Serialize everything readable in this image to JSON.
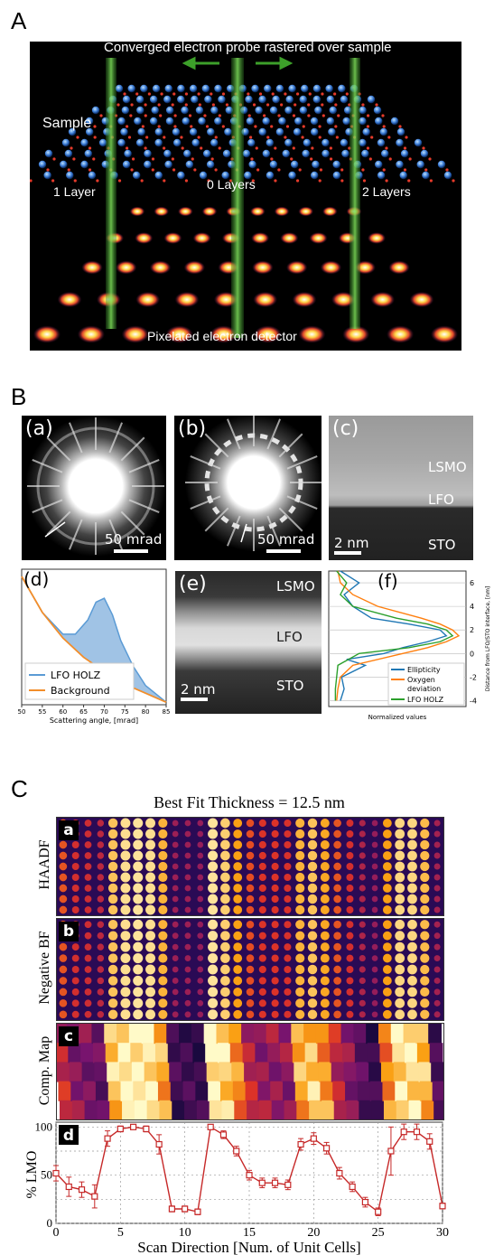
{
  "panel_letters": {
    "a": "A",
    "b": "B",
    "c": "C"
  },
  "panel_a": {
    "top_text": "Converged electron probe rastered over sample",
    "sample": "Sample",
    "layer1": "1 Layer",
    "layer0": "0 Layers",
    "layer2": "2 Layers",
    "detector": "Pixelated electron detector"
  },
  "panel_b": {
    "a": {
      "tag": "(a)",
      "scale": "50 mrad"
    },
    "b": {
      "tag": "(b)",
      "scale": "50 mrad"
    },
    "c": {
      "tag": "(c)",
      "scale": "2 nm",
      "lsmo": "LSMO",
      "lfo": "LFO",
      "sto": "STO"
    },
    "e": {
      "tag": "(e)",
      "scale": "2 nm",
      "lsmo": "LSMO",
      "lfo": "LFO",
      "sto": "STO"
    },
    "f_tag": "(f)",
    "d_tag": "(d)"
  },
  "colors": {
    "holz": "#5b9bd5",
    "background": "#f28e2b",
    "ellipticity": "#1f77b4",
    "oxygen": "#ff7f0e",
    "lfo_holz": "#2ca02c",
    "lmo_line": "#c62828"
  },
  "chart_data": [
    {
      "type": "area",
      "panel": "(d)",
      "xlabel": "Scattering angle, [mrad]",
      "ylabel": "",
      "xlim": [
        50,
        85
      ],
      "xticks": [
        "50",
        "55",
        "60",
        "65",
        "70",
        "75",
        "80",
        "85"
      ],
      "legend_placement": "bottom-left",
      "series": [
        {
          "name": "LFO HOLZ",
          "x": [
            50,
            55,
            60,
            63,
            66,
            68,
            70,
            72,
            74,
            77,
            80,
            85
          ],
          "y": [
            1.0,
            0.72,
            0.55,
            0.55,
            0.66,
            0.8,
            0.83,
            0.7,
            0.5,
            0.3,
            0.15,
            0.02
          ]
        },
        {
          "name": "Background",
          "x": [
            50,
            55,
            60,
            65,
            70,
            75,
            80,
            85
          ],
          "y": [
            1.0,
            0.72,
            0.52,
            0.37,
            0.26,
            0.16,
            0.09,
            0.02
          ]
        }
      ]
    },
    {
      "type": "line",
      "panel": "(f)",
      "xlabel": "Normalized values",
      "ylabel": "Distance from LFO/STO interface, [nm]",
      "ylim": [
        -4.5,
        7
      ],
      "yticks": [
        "-4",
        "-2",
        "0",
        "2",
        "4",
        "6"
      ],
      "legend_placement": "bottom-right",
      "series": [
        {
          "name": "Ellipticity",
          "y": [
            -4,
            -3,
            -2,
            -1,
            -0.5,
            0,
            0.5,
            1,
            1.5,
            2,
            2.5,
            3,
            4,
            5,
            6,
            7
          ],
          "x": [
            0.05,
            0.08,
            0.06,
            0.25,
            0.1,
            0.4,
            0.55,
            0.75,
            0.9,
            0.85,
            0.6,
            0.3,
            0.15,
            0.08,
            0.2,
            0.05
          ]
        },
        {
          "name": "Oxygen deviation",
          "y": [
            -4,
            -3,
            -2,
            -1,
            0,
            0.5,
            1,
            1.5,
            2,
            2.5,
            3,
            4,
            5,
            6,
            7
          ],
          "x": [
            0.02,
            0.03,
            0.05,
            0.15,
            0.55,
            0.75,
            0.9,
            1.0,
            0.95,
            0.85,
            0.7,
            0.35,
            0.15,
            0.05,
            0.03
          ]
        },
        {
          "name": "LFO HOLZ",
          "y": [
            -4,
            -3,
            -2,
            -1,
            0,
            0.5,
            1,
            1.5,
            2,
            2.5,
            3,
            4,
            5,
            6,
            7
          ],
          "x": [
            0.01,
            0.01,
            0.02,
            0.03,
            0.2,
            0.6,
            0.85,
            0.95,
            0.9,
            0.75,
            0.5,
            0.15,
            0.05,
            0.1,
            0.02
          ]
        }
      ]
    },
    {
      "type": "line",
      "panel": "d",
      "title": "Best Fit Thickness = 12.5 nm",
      "xlabel": "Scan Direction [Num. of Unit Cells]",
      "ylabel": "% LMO",
      "xlim": [
        0,
        30
      ],
      "ylim": [
        0,
        105
      ],
      "xticks": [
        "0",
        "5",
        "10",
        "15",
        "20",
        "25",
        "30"
      ],
      "yticks": [
        "0",
        "50",
        "100"
      ],
      "x": [
        0,
        1,
        2,
        3,
        4,
        5,
        6,
        7,
        8,
        9,
        10,
        11,
        12,
        13,
        14,
        15,
        16,
        17,
        18,
        19,
        20,
        21,
        22,
        23,
        24,
        25,
        26,
        27,
        28,
        29,
        30
      ],
      "y": [
        52,
        38,
        35,
        28,
        88,
        98,
        100,
        98,
        82,
        15,
        15,
        12,
        100,
        92,
        75,
        50,
        42,
        42,
        40,
        82,
        88,
        78,
        52,
        38,
        22,
        12,
        75,
        95,
        95,
        85,
        18
      ],
      "err": [
        8,
        10,
        8,
        12,
        8,
        3,
        2,
        3,
        10,
        3,
        3,
        3,
        2,
        4,
        5,
        5,
        5,
        5,
        5,
        6,
        6,
        6,
        6,
        5,
        5,
        4,
        25,
        8,
        8,
        8,
        3
      ]
    }
  ],
  "panel_c": {
    "a_tag": "a",
    "b_tag": "b",
    "c_tag": "c",
    "d_tag": "d",
    "haadf": "HAADF",
    "negbf": "Negative BF",
    "comp": "Comp. Map"
  }
}
